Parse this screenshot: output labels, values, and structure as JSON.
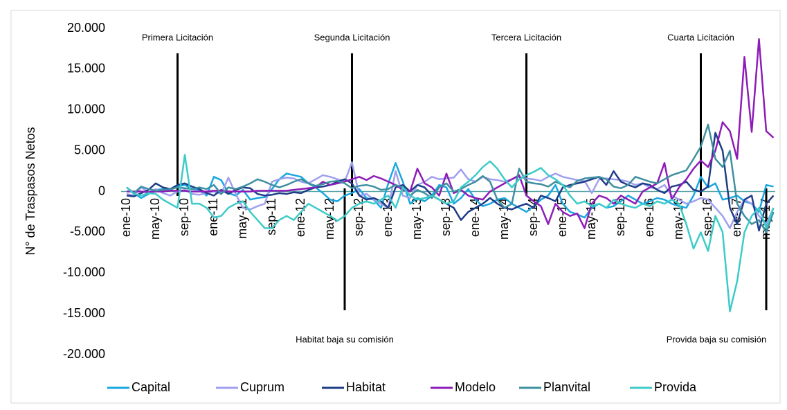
{
  "chart_data": {
    "type": "line",
    "y_label": "N° de Traspasos Netos",
    "categories": [
      "ene-10",
      null,
      null,
      null,
      "may-10",
      null,
      null,
      null,
      "sep-10",
      null,
      null,
      null,
      "ene-11",
      null,
      null,
      null,
      "may-11",
      null,
      null,
      null,
      "sep-11",
      null,
      null,
      null,
      "ene-12",
      null,
      null,
      null,
      "may-12",
      null,
      null,
      null,
      "sep-12",
      null,
      null,
      null,
      "ene-13",
      null,
      null,
      null,
      "may-13",
      null,
      null,
      null,
      "sep-13",
      null,
      null,
      null,
      "ene-14",
      null,
      null,
      null,
      "may-14",
      null,
      null,
      null,
      "sep-14",
      null,
      null,
      null,
      "ene-15",
      null,
      null,
      null,
      "may-15",
      null,
      null,
      null,
      "sep-15",
      null,
      null,
      null,
      "ene-16",
      null,
      null,
      null,
      "may-16",
      null,
      null,
      null,
      "sep-16",
      null,
      null,
      null,
      "ene-17",
      null,
      null,
      null,
      "may-17",
      null
    ],
    "ylim": [
      -20000,
      20000
    ],
    "yticks": [
      {
        "value": -20000,
        "label": "-20.000"
      },
      {
        "value": -15000,
        "label": "-15.000"
      },
      {
        "value": -10000,
        "label": "-10.000"
      },
      {
        "value": -5000,
        "label": "-5.000"
      },
      0,
      {
        "value": 5000,
        "label": "5.000"
      },
      {
        "value": 10000,
        "label": "10.000"
      },
      {
        "value": 15000,
        "label": "15.000"
      },
      {
        "value": 20000,
        "label": "20.000"
      }
    ],
    "annotations": [
      "Primera Licitación",
      "Segunda Licitación",
      "Tercera Licitación",
      "Cuarta Licitación",
      "Habitat baja su comisión",
      "Provida baja su comisión"
    ],
    "series": [
      {
        "name": "Capital",
        "color": "#1aa7e0",
        "values": [
          500,
          -200,
          -800,
          -300,
          200,
          300,
          200,
          600,
          800,
          300,
          200,
          -500,
          1800,
          1400,
          -200,
          -500,
          200,
          -1000,
          -800,
          -700,
          300,
          1500,
          2200,
          2000,
          1800,
          1000,
          500,
          -200,
          -1000,
          -1200,
          -500,
          -200,
          300,
          -800,
          -1000,
          -2000,
          1000,
          3500,
          1200,
          -1500,
          -800,
          -1200,
          -500,
          800,
          500,
          -1500,
          -800,
          300,
          -1000,
          -1800,
          -1500,
          -1000,
          -800,
          -1500,
          -2000,
          -2500,
          -1800,
          -1000,
          -500,
          800,
          -1500,
          -2500,
          -2800,
          -3200,
          -2000,
          -1500,
          -2000,
          -1800,
          -1200,
          -500,
          -1000,
          -1500,
          -1200,
          -800,
          -1000,
          -1500,
          -1800,
          -2000,
          -500,
          1800,
          500,
          1000,
          -1000,
          -800,
          -500,
          -1200,
          -1500,
          -2500,
          800,
          600
        ]
      },
      {
        "name": "Cuprum",
        "color": "#9f9ff0",
        "values": [
          -300,
          -500,
          500,
          -100,
          300,
          -200,
          -500,
          0,
          200,
          -300,
          -400,
          -200,
          0,
          -300,
          1700,
          -300,
          -2000,
          -2200,
          -1800,
          -1500,
          1200,
          1500,
          1700,
          1600,
          1200,
          1000,
          1500,
          2000,
          1800,
          1500,
          1200,
          3600,
          -500,
          -300,
          -1000,
          -1500,
          -2000,
          2500,
          -500,
          -800,
          800,
          1200,
          1800,
          1500,
          1600,
          1700,
          2700,
          1500,
          1200,
          1800,
          1500,
          1400,
          1200,
          1500,
          1800,
          1600,
          1500,
          1300,
          1800,
          2200,
          1800,
          1600,
          1400,
          1300,
          -200,
          1500,
          1600,
          1500,
          1400,
          1200,
          800,
          1000,
          500,
          300,
          800,
          -500,
          -1000,
          -1500,
          -1200,
          -800,
          -1000,
          -2000,
          -3000,
          -4500,
          -2500,
          -1000,
          -1500,
          -3000,
          -4000,
          -2000
        ]
      },
      {
        "name": "Habitat",
        "color": "#1f3c88",
        "values": [
          -500,
          -600,
          -200,
          200,
          1000,
          500,
          300,
          800,
          1000,
          600,
          300,
          -200,
          -500,
          200,
          -300,
          200,
          500,
          400,
          -300,
          -500,
          -400,
          -200,
          -300,
          -100,
          -200,
          200,
          500,
          600,
          800,
          1200,
          1500,
          1000,
          -500,
          -1000,
          -800,
          -1200,
          -2000,
          500,
          800,
          0,
          800,
          500,
          -500,
          -1000,
          -1500,
          -2000,
          -3500,
          -2500,
          -2000,
          -1500,
          -800,
          -1500,
          -2000,
          -2200,
          -1800,
          -1500,
          -2000,
          -500,
          -800,
          -1200,
          500,
          800,
          1000,
          1200,
          1500,
          1800,
          800,
          2500,
          1200,
          800,
          500,
          1000,
          800,
          200,
          -200,
          600,
          800,
          1200,
          200,
          0,
          600,
          7200,
          5000,
          -2000,
          -4000,
          -1000,
          -500,
          -4800,
          -1500,
          -500
        ]
      },
      {
        "name": "Modelo",
        "color": "#8e1cb8",
        "values": [
          0,
          0,
          0,
          -100,
          0,
          0,
          100,
          100,
          100,
          0,
          0,
          0,
          100,
          100,
          0,
          0,
          0,
          0,
          100,
          100,
          100,
          100,
          100,
          200,
          300,
          400,
          500,
          1200,
          800,
          1000,
          1200,
          1500,
          1800,
          1400,
          1900,
          1600,
          1200,
          800,
          200,
          0,
          2800,
          1000,
          500,
          -500,
          2200,
          -200,
          200,
          -500,
          -800,
          -1000,
          0,
          500,
          1000,
          1500,
          2000,
          -500,
          -1200,
          -1800,
          -4000,
          -1500,
          -2500,
          -3000,
          -2700,
          -4500,
          -1500,
          -500,
          -800,
          -1500,
          -500,
          -1000,
          -1500,
          0,
          500,
          1000,
          3500,
          -1000,
          500,
          1500,
          2800,
          3800,
          3000,
          5000,
          8500,
          7400,
          4000,
          16500,
          7300,
          18700,
          7400,
          6600
        ]
      },
      {
        "name": "Planvital",
        "color": "#3e8fa0",
        "values": [
          500,
          -200,
          600,
          300,
          100,
          200,
          300,
          500,
          400,
          300,
          500,
          300,
          800,
          -300,
          500,
          300,
          600,
          1000,
          1500,
          1200,
          800,
          500,
          800,
          1200,
          1500,
          1000,
          700,
          900,
          1200,
          1300,
          1000,
          400,
          700,
          800,
          600,
          200,
          300,
          800,
          500,
          -500,
          200,
          -200,
          -800,
          500,
          1000,
          0,
          300,
          800,
          1200,
          1900,
          1200,
          -1000,
          -2000,
          -1500,
          2800,
          1200,
          1000,
          900,
          600,
          1200,
          800,
          500,
          1300,
          1600,
          1700,
          1800,
          1500,
          600,
          400,
          800,
          1800,
          1500,
          1200,
          1000,
          1500,
          2000,
          2300,
          2600,
          4000,
          5500,
          8200,
          4000,
          3000,
          5000,
          -1500,
          -3000,
          -4000,
          -3500,
          -5000,
          -2500
        ]
      },
      {
        "name": "Provida",
        "color": "#3ccbc8",
        "values": [
          500,
          -300,
          -500,
          -200,
          -300,
          -1000,
          -1500,
          -2000,
          4500,
          -1500,
          -1500,
          -2000,
          -3200,
          -3000,
          -2000,
          -1500,
          -1200,
          -2500,
          -3500,
          -4500,
          -4500,
          -3500,
          -3000,
          -3500,
          -2500,
          -1500,
          -2000,
          -2500,
          -3000,
          -3600,
          -3000,
          -2000,
          -1500,
          -1200,
          -1500,
          -1000,
          -500,
          -2000,
          500,
          -500,
          -1000,
          -800,
          -500,
          -1000,
          -1500,
          -1200,
          500,
          1200,
          2000,
          3000,
          3700,
          2800,
          1500,
          500,
          1500,
          2000,
          2400,
          2900,
          2000,
          1500,
          800,
          -500,
          -1500,
          -1200,
          -1800,
          -1500,
          -2000,
          -1000,
          -1500,
          -1800,
          -2000,
          -1500,
          -1800,
          -1200,
          -1500,
          -1000,
          -1500,
          -4000,
          -7000,
          -5000,
          -7300,
          -3000,
          -5000,
          -14700,
          -11000,
          -5000,
          -3000,
          -2000,
          -4500,
          -2000
        ]
      }
    ]
  }
}
